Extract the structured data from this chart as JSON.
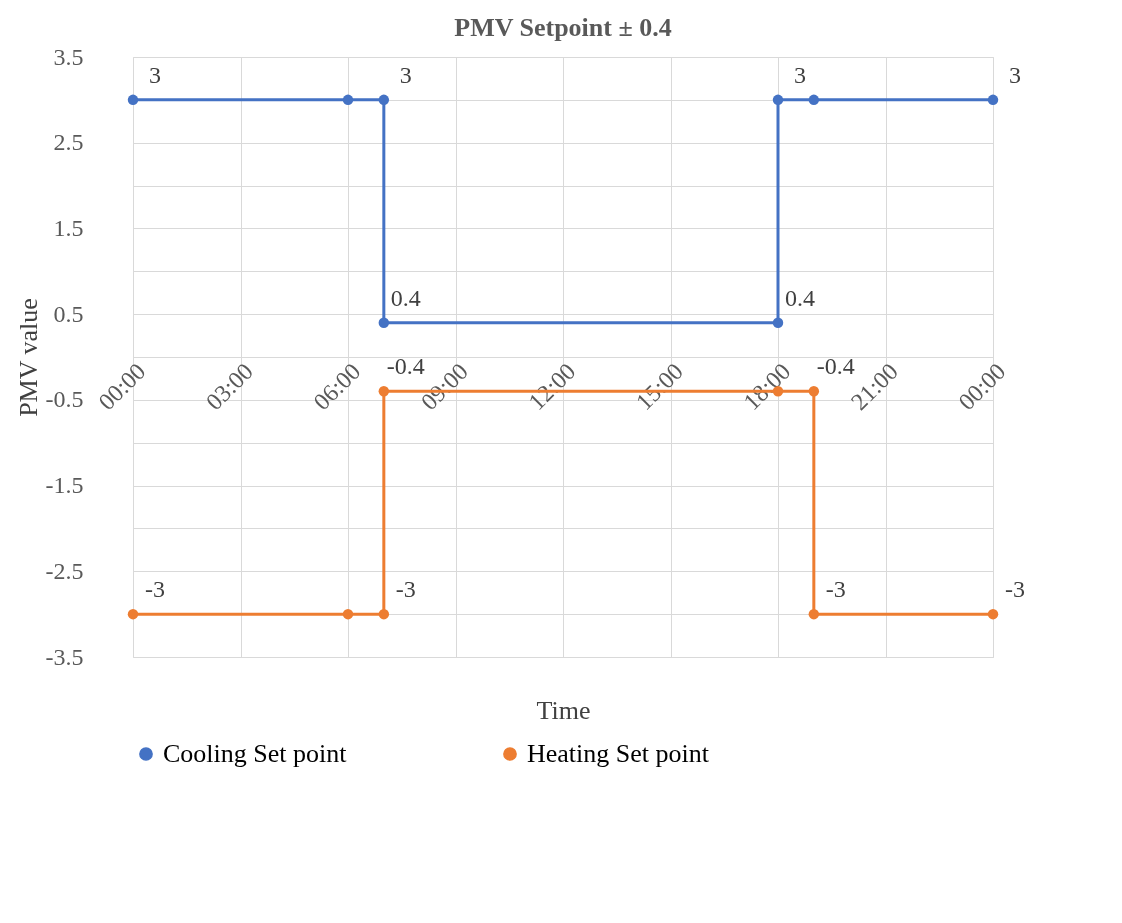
{
  "chart_data": {
    "type": "line",
    "title": "PMV Setpoint ± 0.4",
    "xlabel": "Time",
    "ylabel": "PMV value",
    "xlim": [
      0,
      24
    ],
    "xticks": [
      {
        "value": 0,
        "label": "00:00"
      },
      {
        "value": 3,
        "label": "03:00"
      },
      {
        "value": 6,
        "label": "06:00"
      },
      {
        "value": 9,
        "label": "09:00"
      },
      {
        "value": 12,
        "label": "12:00"
      },
      {
        "value": 15,
        "label": "15:00"
      },
      {
        "value": 18,
        "label": "18:00"
      },
      {
        "value": 21,
        "label": "21:00"
      },
      {
        "value": 24,
        "label": "00:00"
      }
    ],
    "ylim": [
      -3.5,
      3.5
    ],
    "yticks": [
      -3.5,
      {
        "value": -3,
        "label": null
      },
      -2.5,
      {
        "value": -2,
        "label": null
      },
      -1.5,
      {
        "value": -1,
        "label": null
      },
      -0.5,
      {
        "value": 0,
        "label": null
      },
      0.5,
      {
        "value": 1,
        "label": null
      },
      1.5,
      {
        "value": 2,
        "label": null
      },
      2.5,
      {
        "value": 3,
        "label": null
      },
      3.5
    ],
    "series": [
      {
        "name": "Cooling Set point",
        "color": "#4472c4",
        "x": [
          0,
          6,
          7,
          7,
          18,
          18,
          19,
          24
        ],
        "values": [
          3,
          3,
          3,
          0.4,
          0.4,
          3,
          3,
          3
        ],
        "value_labels": [
          "3",
          null,
          "3",
          "0.4",
          "0.4",
          "3",
          null,
          "3"
        ]
      },
      {
        "name": "Heating Set point",
        "color": "#ed7d31",
        "x": [
          0,
          6,
          7,
          7,
          18,
          19,
          19,
          24
        ],
        "values": [
          -3,
          -3,
          -3,
          -0.4,
          -0.4,
          -0.4,
          -3,
          -3
        ],
        "value_labels": [
          "-3",
          null,
          "-3",
          "-0.4",
          null,
          "-0.4",
          "-3",
          "-3"
        ]
      }
    ],
    "grid": true,
    "legend": "bottom",
    "marker": "circle",
    "line_style": "solid"
  }
}
